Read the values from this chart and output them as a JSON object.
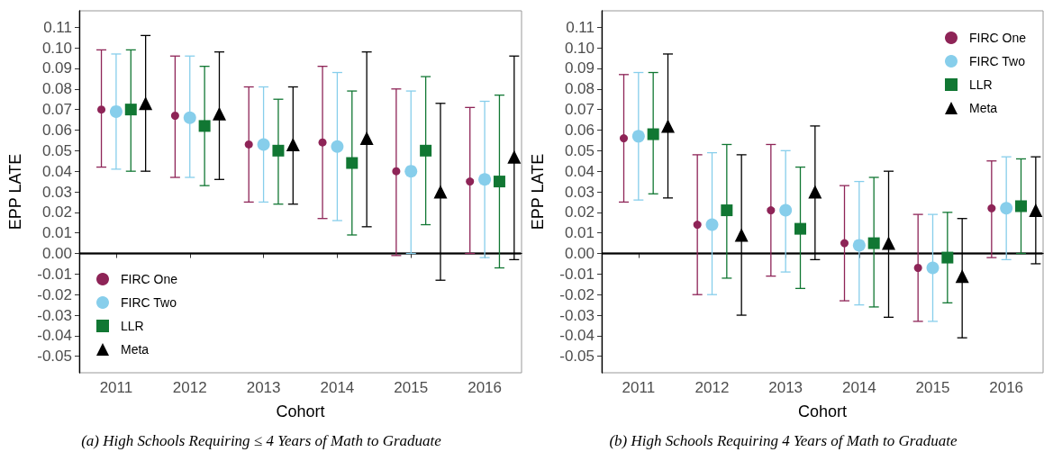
{
  "chart_data": [
    {
      "type": "scatter",
      "xlabel": "Cohort",
      "ylabel": "EPP LATE",
      "annotations": [
        "(a) High Schools Requiring ≤ 4 Years of Math to Graduate"
      ],
      "categories": [
        "2011",
        "2012",
        "2013",
        "2014",
        "2015",
        "2016"
      ],
      "legend": "bottom left",
      "grid": false,
      "ylim": [
        -0.058,
        0.118
      ],
      "yticks": [
        {
          "value": -0.05,
          "label": "-0.05"
        },
        {
          "value": -0.04,
          "label": "-0.04"
        },
        {
          "value": -0.03,
          "label": "-0.03"
        },
        {
          "value": -0.02,
          "label": "-0.02"
        },
        {
          "value": -0.01,
          "label": "-0.01"
        },
        {
          "value": 0,
          "label": "0.00"
        },
        {
          "value": 0.01,
          "label": "0.01"
        },
        {
          "value": 0.02,
          "label": "0.02"
        },
        {
          "value": 0.03,
          "label": "0.03"
        },
        {
          "value": 0.04,
          "label": "0.04"
        },
        {
          "value": 0.05,
          "label": "0.05"
        },
        {
          "value": 0.06,
          "label": "0.06"
        },
        {
          "value": 0.07,
          "label": "0.07"
        },
        {
          "value": 0.08,
          "label": "0.08"
        },
        {
          "value": 0.09,
          "label": "0.09"
        },
        {
          "value": 0.1,
          "label": "0.10"
        },
        {
          "value": 0.11,
          "label": "0.11"
        }
      ],
      "ref_lines": [
        {
          "axis": "y",
          "value": 0,
          "color": "#000000"
        }
      ],
      "series": [
        {
          "name": "FIRC One",
          "color": "#8e2457",
          "marker": "circle",
          "values": [
            0.07,
            0.067,
            0.053,
            0.054,
            0.04,
            0.035
          ],
          "errors": [
            [
              0.042,
              0.099
            ],
            [
              0.037,
              0.096
            ],
            [
              0.025,
              0.081
            ],
            [
              0.017,
              0.091
            ],
            [
              -0.001,
              0.08
            ],
            [
              0.0,
              0.071
            ]
          ]
        },
        {
          "name": "FIRC Two",
          "color": "#87ceeb",
          "marker": "circle",
          "values": [
            0.069,
            0.066,
            0.053,
            0.052,
            0.04,
            0.036
          ],
          "errors": [
            [
              0.041,
              0.097
            ],
            [
              0.037,
              0.096
            ],
            [
              0.025,
              0.081
            ],
            [
              0.016,
              0.088
            ],
            [
              0.0,
              0.079
            ],
            [
              -0.002,
              0.074
            ]
          ]
        },
        {
          "name": "LLR",
          "color": "#117733",
          "marker": "square",
          "values": [
            0.07,
            0.062,
            0.05,
            0.044,
            0.05,
            0.035
          ],
          "errors": [
            [
              0.04,
              0.099
            ],
            [
              0.033,
              0.091
            ],
            [
              0.024,
              0.075
            ],
            [
              0.009,
              0.079
            ],
            [
              0.014,
              0.086
            ],
            [
              -0.007,
              0.077
            ]
          ]
        },
        {
          "name": "Meta",
          "color": "#000000",
          "marker": "triangle",
          "values": [
            0.073,
            0.068,
            0.053,
            0.056,
            0.03,
            0.047
          ],
          "errors": [
            [
              0.04,
              0.106
            ],
            [
              0.036,
              0.098
            ],
            [
              0.024,
              0.081
            ],
            [
              0.013,
              0.098
            ],
            [
              -0.013,
              0.073
            ],
            [
              -0.003,
              0.096
            ]
          ]
        }
      ]
    },
    {
      "type": "scatter",
      "xlabel": "Cohort",
      "ylabel": "EPP LATE",
      "annotations": [
        "(b) High Schools Requiring 4 Years of Math to Graduate"
      ],
      "categories": [
        "2011",
        "2012",
        "2013",
        "2014",
        "2015",
        "2016"
      ],
      "legend": "top right",
      "grid": false,
      "ylim": [
        -0.058,
        0.118
      ],
      "yticks": [
        {
          "value": -0.05,
          "label": "-0.05"
        },
        {
          "value": -0.04,
          "label": "-0.04"
        },
        {
          "value": -0.03,
          "label": "-0.03"
        },
        {
          "value": -0.02,
          "label": "-0.02"
        },
        {
          "value": -0.01,
          "label": "-0.01"
        },
        {
          "value": 0,
          "label": "0.00"
        },
        {
          "value": 0.01,
          "label": "0.01"
        },
        {
          "value": 0.02,
          "label": "0.02"
        },
        {
          "value": 0.03,
          "label": "0.03"
        },
        {
          "value": 0.04,
          "label": "0.04"
        },
        {
          "value": 0.05,
          "label": "0.05"
        },
        {
          "value": 0.06,
          "label": "0.06"
        },
        {
          "value": 0.07,
          "label": "0.07"
        },
        {
          "value": 0.08,
          "label": "0.08"
        },
        {
          "value": 0.09,
          "label": "0.09"
        },
        {
          "value": 0.1,
          "label": "0.10"
        },
        {
          "value": 0.11,
          "label": "0.11"
        }
      ],
      "ref_lines": [
        {
          "axis": "y",
          "value": 0,
          "color": "#000000"
        }
      ],
      "series": [
        {
          "name": "FIRC One",
          "color": "#8e2457",
          "marker": "circle",
          "values": [
            0.056,
            0.014,
            0.021,
            0.005,
            -0.007,
            0.022
          ],
          "errors": [
            [
              0.025,
              0.087
            ],
            [
              -0.02,
              0.048
            ],
            [
              -0.011,
              0.053
            ],
            [
              -0.023,
              0.033
            ],
            [
              -0.033,
              0.019
            ],
            [
              -0.002,
              0.045
            ]
          ]
        },
        {
          "name": "FIRC Two",
          "color": "#87ceeb",
          "marker": "circle",
          "values": [
            0.057,
            0.014,
            0.021,
            0.004,
            -0.007,
            0.022
          ],
          "errors": [
            [
              0.026,
              0.088
            ],
            [
              -0.02,
              0.049
            ],
            [
              -0.009,
              0.05
            ],
            [
              -0.025,
              0.035
            ],
            [
              -0.033,
              0.019
            ],
            [
              -0.003,
              0.047
            ]
          ]
        },
        {
          "name": "LLR",
          "color": "#117733",
          "marker": "square",
          "values": [
            0.058,
            0.021,
            0.012,
            0.005,
            -0.002,
            0.023
          ],
          "errors": [
            [
              0.029,
              0.088
            ],
            [
              -0.012,
              0.053
            ],
            [
              -0.017,
              0.042
            ],
            [
              -0.026,
              0.037
            ],
            [
              -0.024,
              0.02
            ],
            [
              0.0,
              0.046
            ]
          ]
        },
        {
          "name": "Meta",
          "color": "#000000",
          "marker": "triangle",
          "values": [
            0.062,
            0.009,
            0.03,
            0.005,
            -0.011,
            0.021
          ],
          "errors": [
            [
              0.027,
              0.097
            ],
            [
              -0.03,
              0.048
            ],
            [
              -0.003,
              0.062
            ],
            [
              -0.031,
              0.04
            ],
            [
              -0.041,
              0.017
            ],
            [
              -0.005,
              0.047
            ]
          ]
        }
      ]
    }
  ]
}
